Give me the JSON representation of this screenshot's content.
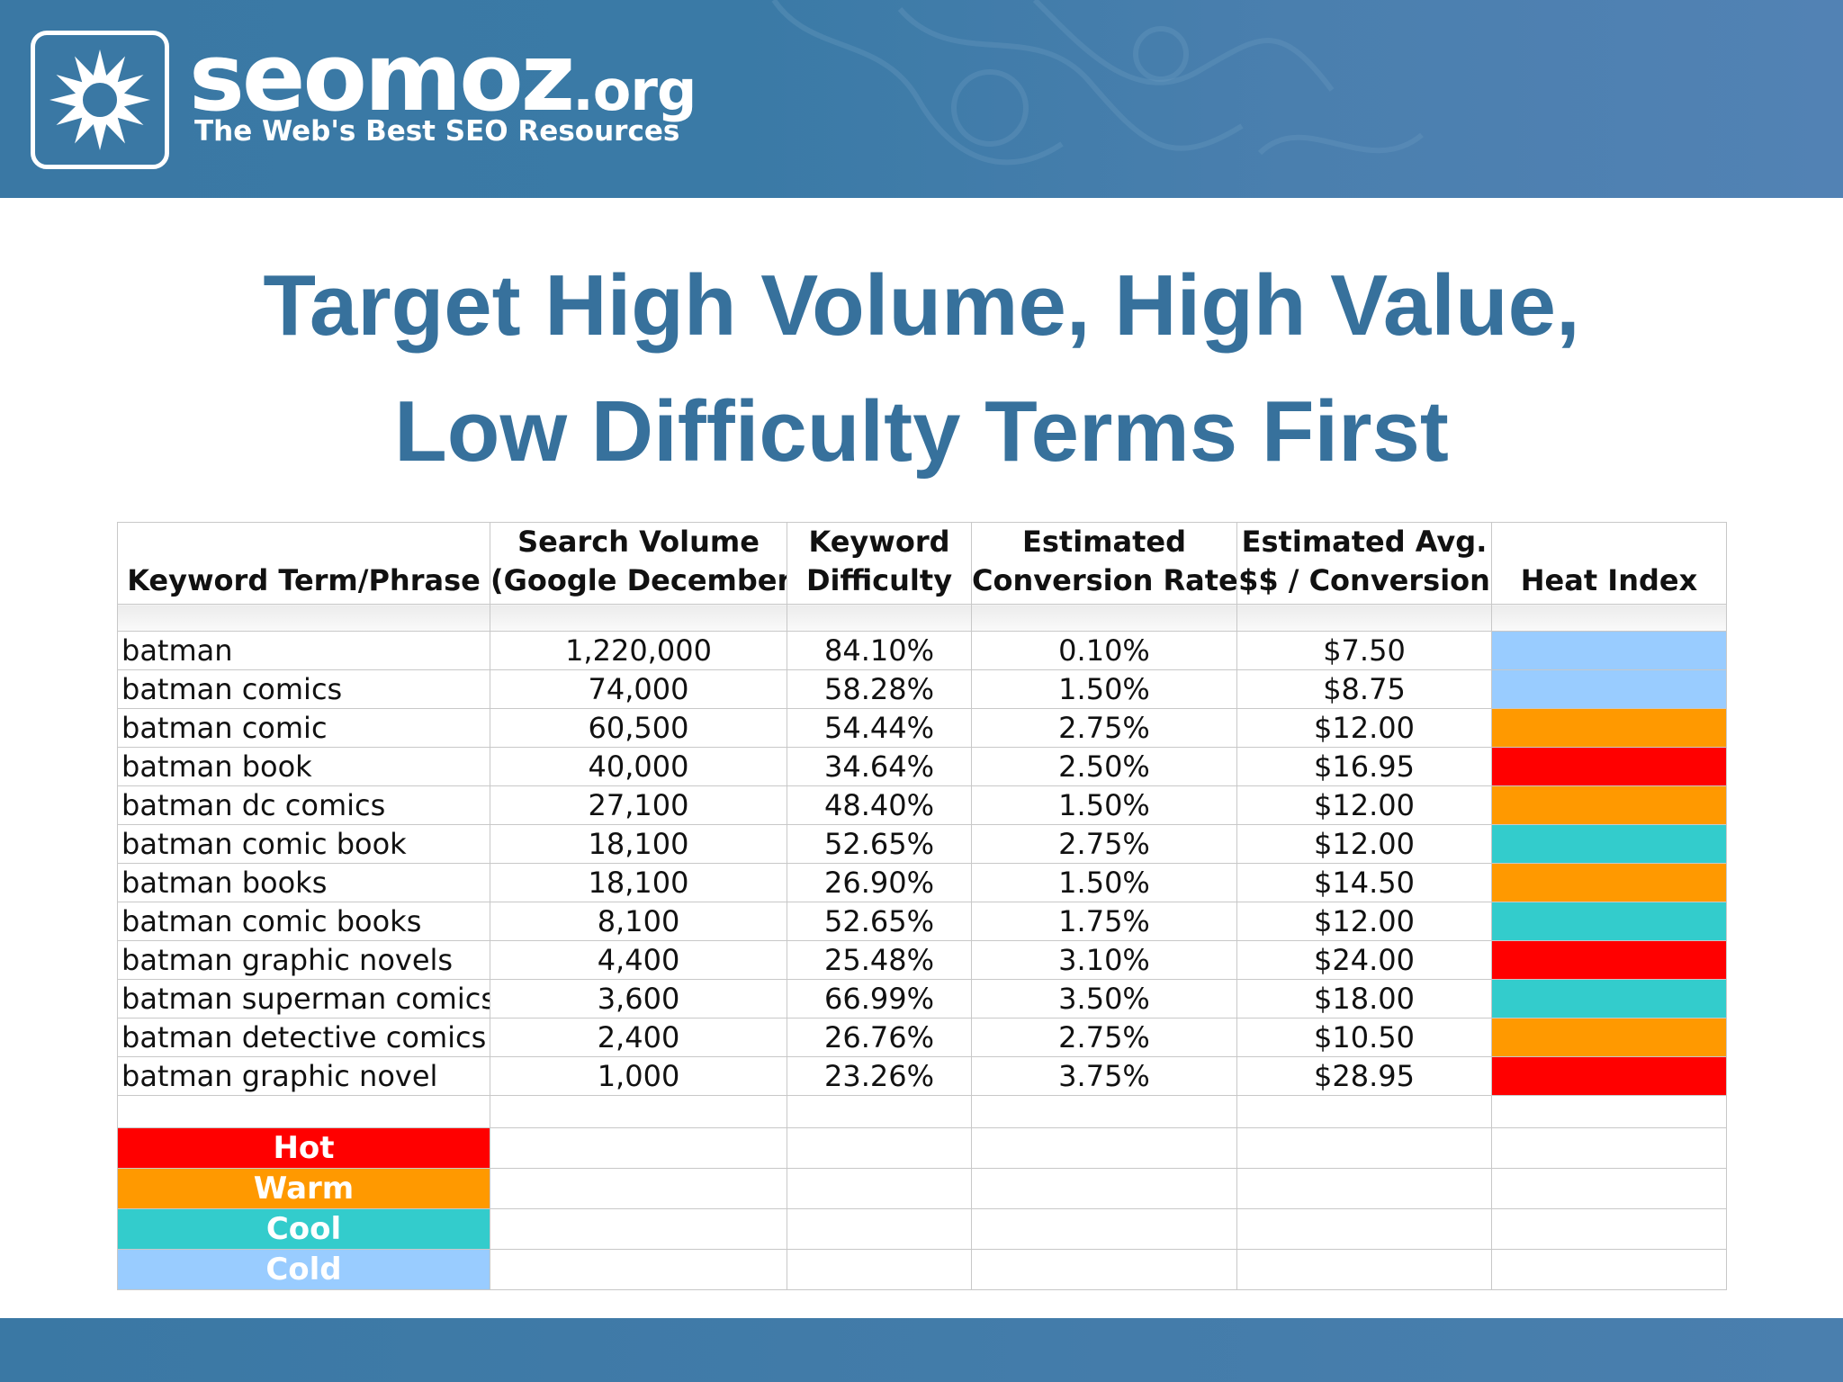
{
  "header": {
    "logo_main": "seomoz",
    "logo_tld": ".org",
    "tagline": "The Web's Best SEO Resources"
  },
  "title": {
    "line1": "Target High Volume, High Value,",
    "line2": "Low Difficulty Terms First"
  },
  "table": {
    "headers": {
      "keyword": "Keyword Term/Phrase",
      "volume_line1": "Search Volume",
      "volume_line2": "(Google December)",
      "difficulty_line1": "Keyword",
      "difficulty_line2": "Difficulty",
      "conversion_line1": "Estimated",
      "conversion_line2": "Conversion Rate",
      "value_line1": "Estimated Avg.",
      "value_line2": "$$ / Conversion",
      "heat": "Heat Index"
    },
    "rows": [
      {
        "keyword": "batman",
        "volume": "1,220,000",
        "difficulty": "84.10%",
        "conversion": "0.10%",
        "value": "$7.50",
        "heat": "Cold"
      },
      {
        "keyword": "batman comics",
        "volume": "74,000",
        "difficulty": "58.28%",
        "conversion": "1.50%",
        "value": "$8.75",
        "heat": "Cold"
      },
      {
        "keyword": "batman comic",
        "volume": "60,500",
        "difficulty": "54.44%",
        "conversion": "2.75%",
        "value": "$12.00",
        "heat": "Warm"
      },
      {
        "keyword": "batman book",
        "volume": "40,000",
        "difficulty": "34.64%",
        "conversion": "2.50%",
        "value": "$16.95",
        "heat": "Hot"
      },
      {
        "keyword": "batman dc comics",
        "volume": "27,100",
        "difficulty": "48.40%",
        "conversion": "1.50%",
        "value": "$12.00",
        "heat": "Warm"
      },
      {
        "keyword": "batman comic book",
        "volume": "18,100",
        "difficulty": "52.65%",
        "conversion": "2.75%",
        "value": "$12.00",
        "heat": "Cool"
      },
      {
        "keyword": "batman books",
        "volume": "18,100",
        "difficulty": "26.90%",
        "conversion": "1.50%",
        "value": "$14.50",
        "heat": "Warm"
      },
      {
        "keyword": "batman comic books",
        "volume": "8,100",
        "difficulty": "52.65%",
        "conversion": "1.75%",
        "value": "$12.00",
        "heat": "Cool"
      },
      {
        "keyword": "batman graphic novels",
        "volume": "4,400",
        "difficulty": "25.48%",
        "conversion": "3.10%",
        "value": "$24.00",
        "heat": "Hot"
      },
      {
        "keyword": "batman superman comics",
        "volume": "3,600",
        "difficulty": "66.99%",
        "conversion": "3.50%",
        "value": "$18.00",
        "heat": "Cool"
      },
      {
        "keyword": "batman detective comics",
        "volume": "2,400",
        "difficulty": "26.76%",
        "conversion": "2.75%",
        "value": "$10.50",
        "heat": "Warm"
      },
      {
        "keyword": "batman graphic novel",
        "volume": "1,000",
        "difficulty": "23.26%",
        "conversion": "3.75%",
        "value": "$28.95",
        "heat": "Hot"
      }
    ]
  },
  "legend": [
    {
      "label": "Hot",
      "color": "#ff0000"
    },
    {
      "label": "Warm",
      "color": "#ff9900"
    },
    {
      "label": "Cool",
      "color": "#33cccc"
    },
    {
      "label": "Cold",
      "color": "#99ccff"
    }
  ],
  "heat_colors": {
    "Hot": "#ff0000",
    "Warm": "#ff9900",
    "Cool": "#33cccc",
    "Cold": "#99ccff"
  },
  "colors": {
    "brand_blue": "#3a78a4",
    "title_blue": "#37719c"
  }
}
